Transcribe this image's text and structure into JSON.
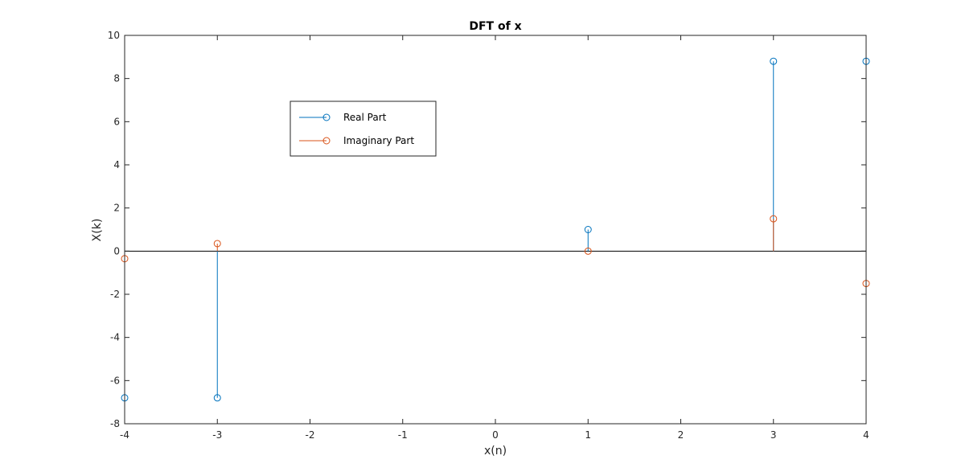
{
  "chart_data": {
    "type": "stem",
    "title": "DFT of x",
    "xlabel": "x(n)",
    "ylabel": "X(k)",
    "xlim": [
      -4,
      4
    ],
    "ylim": [
      -8,
      10
    ],
    "xticks": [
      -4,
      -3,
      -2,
      -1,
      0,
      1,
      2,
      3,
      4
    ],
    "yticks": [
      -8,
      -6,
      -4,
      -2,
      0,
      2,
      4,
      6,
      8,
      10
    ],
    "baseline": 0,
    "legend_position": "upper-left",
    "series": [
      {
        "name": "Real Part",
        "color": "#0072BD",
        "x": [
          -4,
          -3,
          1,
          3,
          4
        ],
        "y": [
          -6.8,
          -6.8,
          1,
          8.8,
          8.8
        ]
      },
      {
        "name": "Imaginary Part",
        "color": "#D95319",
        "x": [
          -4,
          -3,
          1,
          3,
          4
        ],
        "y": [
          -0.35,
          0.35,
          0,
          1.5,
          -1.5
        ]
      }
    ]
  }
}
